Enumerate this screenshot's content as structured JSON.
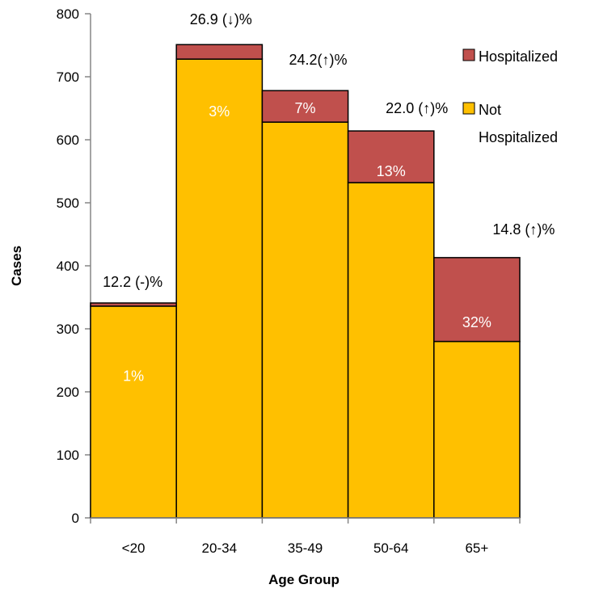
{
  "chart_data": {
    "type": "bar",
    "stacked": true,
    "title": "",
    "xlabel": "Age Group",
    "ylabel": "Cases",
    "ylim": [
      0,
      800
    ],
    "yticks": [
      0,
      100,
      200,
      300,
      400,
      500,
      600,
      700,
      800
    ],
    "grid": false,
    "legend_position": "right",
    "categories": [
      "<20",
      "20-34",
      "35-49",
      "50-64",
      "65+"
    ],
    "series": [
      {
        "name": "Not Hospitalized",
        "color": "#FFC000",
        "values": [
          336,
          728,
          628,
          532,
          280
        ]
      },
      {
        "name": "Hospitalized",
        "color": "#C0504D",
        "values": [
          5,
          23,
          50,
          82,
          133
        ]
      }
    ],
    "bar_labels": [
      "1%",
      "3%",
      "7%",
      "13%",
      "32%"
    ],
    "top_labels": [
      "12.2 (-)%",
      "26.9 (↓)%",
      "24.2(↑)%",
      "22.0 (↑)%",
      "14.8 (↑)%"
    ]
  }
}
